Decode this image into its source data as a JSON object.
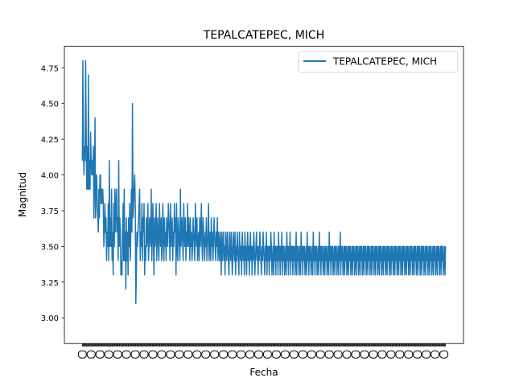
{
  "chart_data": {
    "type": "line",
    "title": "TEPALCATEPEC, MICH",
    "xlabel": "Fecha",
    "ylabel": "Magnitud",
    "ylim": [
      2.82,
      4.9
    ],
    "yticks": [
      3.0,
      3.25,
      3.5,
      3.75,
      4.0,
      4.25,
      4.5,
      4.75
    ],
    "ytick_labels": [
      "3.00",
      "3.25",
      "3.50",
      "3.75",
      "4.00",
      "4.25",
      "4.50",
      "4.75"
    ],
    "xtick_note": "dense overlapping date labels (illegible)",
    "legend_position": "top-right",
    "grid": false,
    "color": "#1f77b4",
    "series": [
      {
        "name": "TEPALCATEPEC, MICH",
        "values": [
          4.1,
          4.8,
          4.2,
          4.0,
          4.2,
          4.1,
          4.8,
          4.3,
          3.9,
          4.2,
          3.9,
          4.7,
          3.9,
          4.1,
          3.9,
          4.3,
          4.1,
          4.0,
          4.1,
          4.0,
          4.2,
          3.7,
          4.0,
          4.4,
          3.7,
          3.9,
          4.0,
          3.8,
          3.7,
          3.6,
          3.9,
          3.7,
          4.0,
          4.0,
          3.8,
          3.9,
          3.8,
          3.9,
          3.8,
          3.5,
          3.6,
          3.8,
          3.6,
          3.7,
          3.4,
          3.6,
          3.5,
          3.8,
          3.4,
          4.1,
          3.5,
          3.7,
          3.5,
          3.9,
          3.4,
          3.6,
          3.3,
          3.8,
          3.5,
          3.9,
          3.6,
          3.8,
          3.9,
          3.6,
          3.7,
          3.4,
          4.1,
          3.5,
          3.7,
          3.6,
          3.3,
          3.4,
          3.3,
          3.6,
          3.8,
          3.4,
          3.9,
          3.4,
          3.6,
          3.2,
          3.7,
          3.4,
          3.6,
          3.3,
          3.7,
          3.5,
          3.8,
          3.4,
          3.6,
          3.9,
          3.6,
          4.5,
          3.7,
          3.8,
          3.9,
          4.0,
          3.8,
          3.1,
          3.3,
          3.6,
          3.5,
          3.6,
          3.7,
          3.8,
          3.9,
          3.4,
          3.6,
          3.5,
          3.8,
          3.4,
          3.7,
          3.6,
          3.8,
          3.3,
          3.5,
          3.4,
          3.7,
          3.5,
          3.6,
          3.8,
          3.4,
          3.5,
          3.7,
          3.6,
          3.5,
          3.9,
          3.4,
          3.6,
          3.8,
          3.5,
          3.3,
          3.7,
          3.5,
          3.6,
          3.8,
          3.4,
          3.6,
          3.7,
          3.5,
          3.4,
          3.8,
          3.6,
          3.5,
          3.7,
          3.4,
          3.5,
          3.8,
          3.6,
          3.4,
          3.7,
          3.5,
          3.6,
          3.4,
          3.7,
          3.6,
          3.5,
          3.8,
          3.7,
          3.6,
          3.4,
          3.8,
          3.5,
          3.6,
          3.7,
          3.4,
          3.6,
          3.5,
          3.8,
          3.6,
          3.7,
          3.3,
          3.8,
          3.5,
          3.4,
          3.7,
          3.6,
          3.5,
          3.4,
          3.9,
          3.5,
          3.6,
          3.7,
          3.5,
          3.4,
          3.8,
          3.6,
          3.5,
          3.7,
          3.4,
          3.6,
          3.5,
          3.8,
          3.5,
          3.7,
          3.6,
          3.4,
          3.7,
          3.5,
          3.6,
          3.4,
          3.5,
          3.7,
          3.6,
          3.5,
          3.4,
          3.8,
          3.6,
          3.5,
          3.7,
          3.4,
          3.5,
          3.6,
          3.4,
          3.7,
          3.5,
          3.6,
          3.8,
          3.5,
          3.4,
          3.7,
          3.6,
          3.5,
          3.4,
          3.6,
          3.5,
          3.7,
          3.4,
          3.5,
          3.6,
          3.8,
          3.4,
          3.5,
          3.6,
          3.4,
          3.7,
          3.5,
          3.6,
          3.4,
          3.5,
          3.7,
          3.6,
          3.5,
          3.4,
          3.6,
          3.5,
          3.7,
          3.4,
          3.6,
          3.5,
          3.4,
          3.6,
          3.5,
          3.3,
          3.6,
          3.4,
          3.5,
          3.6,
          3.4,
          3.5,
          3.3,
          3.6,
          3.5,
          3.4,
          3.6,
          3.5,
          3.4,
          3.3,
          3.6,
          3.5,
          3.4,
          3.6,
          3.5,
          3.3,
          3.4,
          3.6,
          3.5,
          3.4,
          3.6,
          3.3,
          3.5,
          3.4,
          3.6,
          3.5,
          3.4,
          3.3,
          3.6,
          3.5,
          3.4,
          3.5,
          3.3,
          3.6,
          3.5,
          3.4,
          3.5,
          3.3,
          3.6,
          3.4,
          3.5,
          3.3,
          3.5,
          3.6,
          3.4,
          3.5,
          3.3,
          3.5,
          3.6,
          3.4,
          3.5,
          3.3,
          3.5,
          3.4,
          3.6,
          3.5,
          3.3,
          3.4,
          3.5,
          3.6,
          3.4,
          3.5,
          3.3,
          3.5,
          3.4,
          3.6,
          3.5,
          3.4,
          3.3,
          3.5,
          3.4,
          3.6,
          3.5,
          3.4,
          3.3,
          3.5,
          3.4,
          3.6,
          3.3,
          3.5,
          3.4,
          3.5,
          3.3,
          3.5,
          3.4,
          3.6,
          3.5,
          3.3,
          3.4,
          3.5,
          3.3,
          3.6,
          3.4,
          3.5,
          3.3,
          3.5,
          3.4,
          3.5,
          3.3,
          3.6,
          3.4,
          3.5,
          3.3,
          3.5,
          3.4,
          3.6,
          3.3,
          3.5,
          3.4,
          3.5,
          3.3,
          3.4,
          3.5,
          3.3,
          3.6,
          3.4,
          3.5,
          3.3,
          3.5,
          3.4,
          3.6,
          3.3,
          3.5,
          3.4,
          3.5,
          3.3,
          3.5,
          3.4,
          3.5,
          3.3,
          3.4,
          3.6,
          3.3,
          3.5,
          3.4,
          3.5,
          3.3,
          3.4,
          3.5,
          3.3,
          3.6,
          3.4,
          3.5,
          3.3,
          3.5,
          3.4,
          3.5,
          3.3,
          3.4,
          3.5,
          3.3,
          3.6,
          3.4,
          3.5,
          3.3,
          3.5,
          3.4,
          3.5,
          3.3,
          3.4,
          3.5,
          3.3,
          3.6,
          3.4,
          3.5,
          3.3,
          3.5,
          3.4,
          3.5,
          3.3,
          3.4,
          3.5,
          3.3,
          3.6,
          3.4,
          3.5,
          3.3,
          3.5,
          3.4,
          3.5,
          3.3,
          3.4,
          3.5,
          3.3,
          3.5,
          3.4,
          3.5,
          3.3,
          3.4,
          3.5,
          3.3,
          3.6,
          3.4,
          3.5,
          3.3,
          3.5,
          3.4,
          3.5,
          3.3,
          3.4,
          3.5,
          3.3,
          3.5,
          3.4,
          3.5,
          3.3,
          3.4,
          3.5,
          3.3,
          3.5,
          3.4,
          3.6,
          3.3,
          3.5,
          3.4,
          3.5,
          3.3,
          3.4,
          3.5,
          3.3,
          3.5,
          3.4,
          3.5,
          3.3,
          3.4,
          3.5,
          3.3,
          3.5,
          3.4,
          3.5,
          3.3,
          3.4,
          3.5,
          3.3,
          3.5,
          3.4,
          3.5,
          3.3,
          3.4,
          3.5,
          3.3,
          3.5,
          3.4,
          3.5,
          3.3,
          3.4,
          3.5,
          3.3,
          3.5,
          3.4,
          3.5,
          3.3,
          3.4,
          3.5,
          3.3,
          3.5,
          3.4,
          3.5,
          3.3,
          3.4,
          3.5,
          3.3,
          3.5,
          3.4,
          3.5,
          3.3,
          3.4,
          3.5,
          3.3,
          3.5,
          3.4,
          3.5,
          3.3,
          3.4,
          3.5,
          3.3,
          3.5,
          3.4,
          3.5,
          3.3,
          3.4,
          3.5,
          3.3,
          3.5,
          3.4,
          3.5,
          3.3,
          3.4,
          3.5,
          3.3,
          3.5,
          3.4,
          3.5,
          3.3,
          3.4,
          3.5,
          3.3,
          3.5,
          3.4,
          3.5,
          3.3,
          3.4,
          3.5,
          3.3,
          3.5,
          3.4,
          3.5,
          3.3,
          3.4,
          3.5,
          3.3,
          3.5,
          3.4,
          3.5,
          3.3,
          3.4,
          3.5,
          3.3,
          3.5,
          3.4,
          3.5,
          3.3,
          3.4,
          3.5,
          3.3,
          3.5,
          3.4,
          3.5,
          3.3,
          3.4,
          3.5,
          3.3,
          3.5,
          3.4,
          3.5,
          3.3,
          3.4,
          3.5,
          3.3,
          3.5,
          3.4,
          3.5,
          3.3,
          3.4,
          3.5,
          3.3,
          3.5,
          3.4,
          3.5,
          3.3,
          3.4,
          3.5,
          3.3,
          3.5,
          3.4,
          3.5,
          3.3,
          3.4,
          3.5,
          3.3,
          3.5,
          3.4,
          3.5,
          3.3,
          3.4,
          3.5,
          3.3,
          3.5,
          3.4,
          3.5,
          3.3,
          3.4,
          3.5,
          3.3,
          3.5,
          3.4,
          3.5,
          3.3,
          3.4,
          3.5,
          3.3,
          3.5,
          3.4,
          3.5,
          3.3,
          3.4,
          3.5,
          3.3,
          3.5,
          3.4,
          3.5,
          3.3,
          3.4,
          3.5,
          3.3,
          3.5,
          3.4,
          3.5,
          3.3,
          3.4,
          3.5,
          3.3,
          3.5
        ]
      }
    ]
  }
}
